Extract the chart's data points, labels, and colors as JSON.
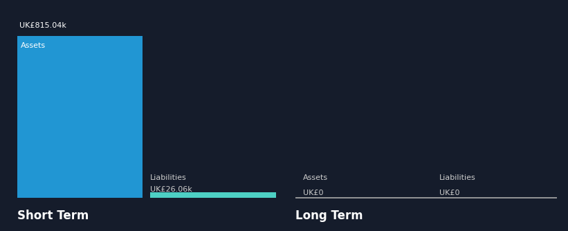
{
  "background_color": "#151c2b",
  "short_term": {
    "assets_value": 815.04,
    "liabilities_value": 26.06,
    "assets_label": "Assets",
    "liabilities_label": "Liabilities",
    "assets_value_label": "UK£815.04k",
    "liabilities_value_label": "UK£26.06k",
    "assets_color": "#2196d3",
    "liabilities_color": "#4dd0c4",
    "section_title": "Short Term"
  },
  "long_term": {
    "assets_value": 0,
    "liabilities_value": 0,
    "assets_label": "Assets",
    "liabilities_label": "Liabilities",
    "assets_value_label": "UK£0",
    "liabilities_value_label": "UK£0",
    "section_title": "Long Term",
    "line_color": "#aaaaaa"
  },
  "text_color": "#ffffff",
  "label_color": "#cccccc"
}
